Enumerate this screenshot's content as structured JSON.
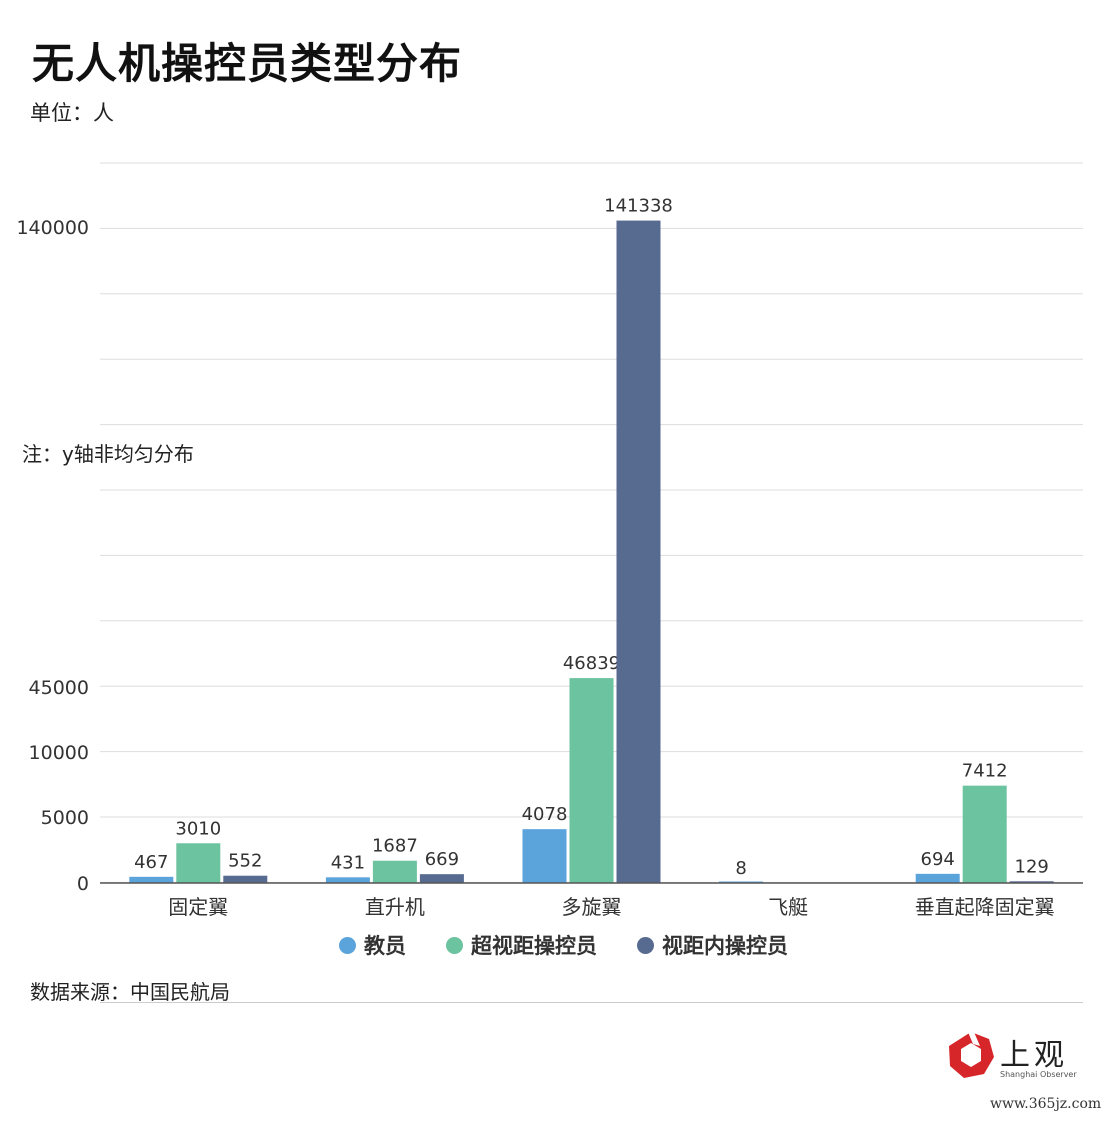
{
  "title": "无人机操控员类型分布",
  "unit": "单位：人",
  "note": "注：y轴非均匀分布",
  "source": "数据来源：中国民航局",
  "logo": {
    "name": "上观",
    "subtitle": "Shanghai Observer"
  },
  "website": "www.365jz.com",
  "chart_data": {
    "type": "bar",
    "title": "无人机操控员类型分布",
    "ylabel": "单位：人",
    "categories": [
      "固定翼",
      "直升机",
      "多旋翼",
      "飞艇",
      "垂直起降固定翼"
    ],
    "series": [
      {
        "name": "教员",
        "color": "#5ba3db",
        "values": [
          467,
          431,
          4078,
          8,
          694
        ],
        "labels": [
          "467",
          "431",
          "4078",
          "8",
          "694"
        ]
      },
      {
        "name": "超视距操控员",
        "color": "#6cc39f",
        "values": [
          3010,
          1687,
          46839,
          0,
          7412
        ],
        "labels": [
          "3010",
          "1687",
          "46839",
          "",
          "7412"
        ]
      },
      {
        "name": "视距内操控员",
        "color": "#576a90",
        "values": [
          552,
          669,
          141338,
          0,
          129
        ],
        "labels": [
          "552",
          "669",
          "141338",
          "",
          "129"
        ]
      }
    ],
    "yticks": [
      0,
      5000,
      10000,
      45000,
      140000
    ],
    "ytick_labels": [
      "0",
      "5000",
      "10000",
      "45000",
      "140000"
    ],
    "y_scale": "non-uniform",
    "grid": true,
    "legend_position": "bottom-center"
  }
}
